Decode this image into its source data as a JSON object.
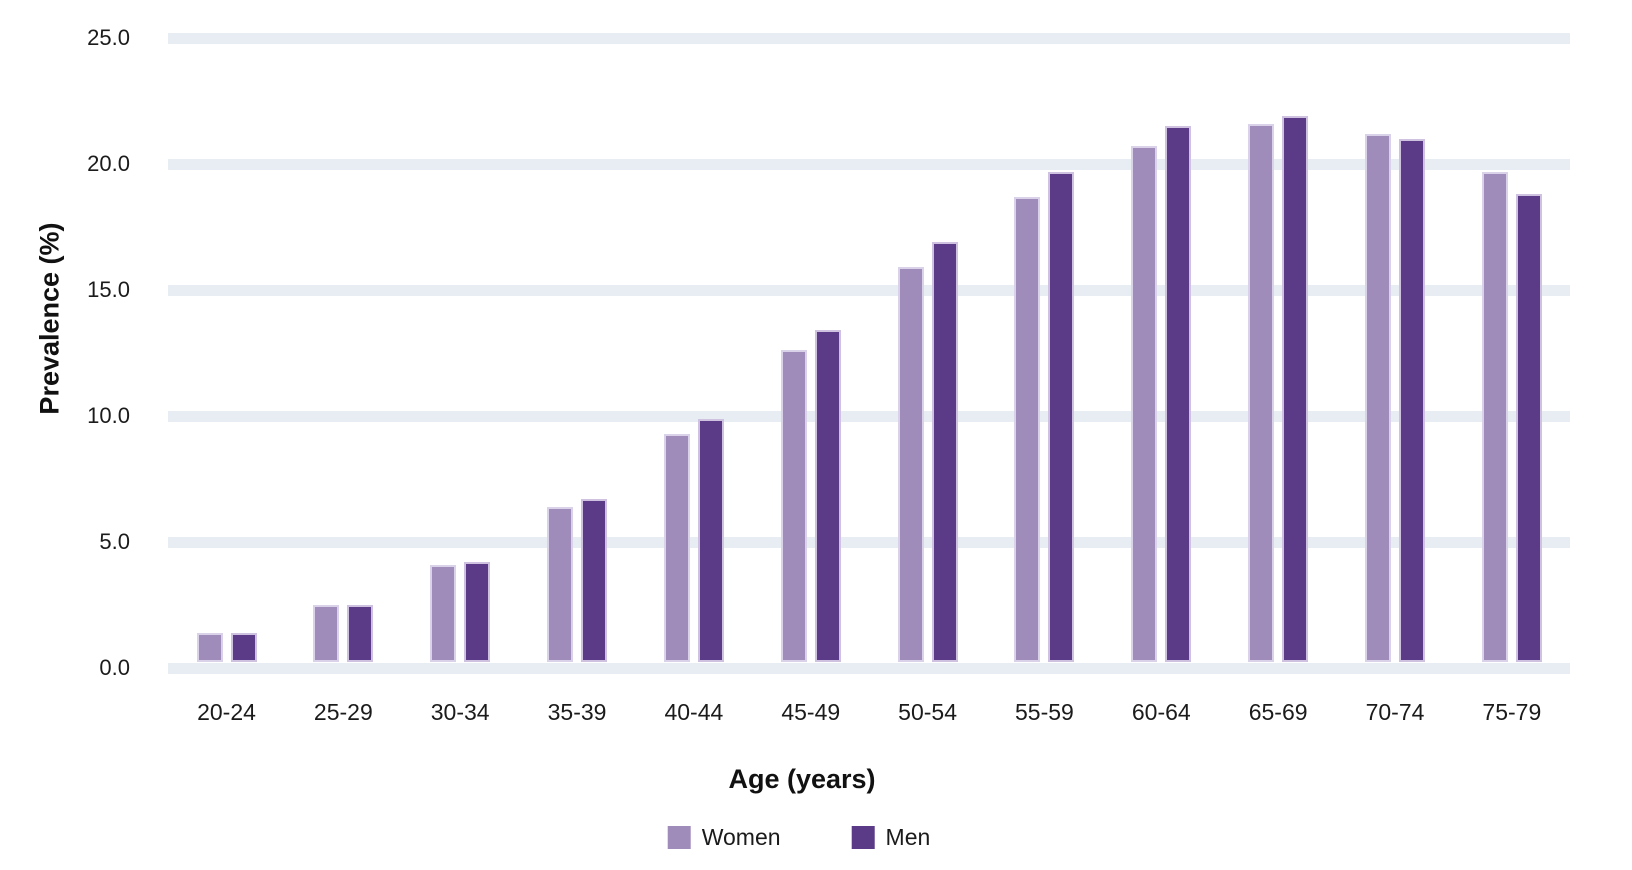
{
  "chart_data": {
    "type": "bar",
    "title": "",
    "categories": [
      "20-24",
      "25-29",
      "30-34",
      "35-39",
      "40-44",
      "45-49",
      "50-54",
      "55-59",
      "60-64",
      "65-69",
      "70-74",
      "75-79"
    ],
    "series": [
      {
        "name": "Women",
        "color": "#a08cba",
        "border_color": "#d9d2e8",
        "values": [
          1.4,
          2.5,
          4.1,
          6.4,
          9.3,
          12.6,
          15.9,
          18.7,
          20.7,
          21.6,
          21.2,
          19.7
        ]
      },
      {
        "name": "Men",
        "color": "#5b3a87",
        "border_color": "#cfc2e0",
        "values": [
          1.4,
          2.5,
          4.2,
          6.7,
          9.9,
          13.4,
          16.9,
          19.7,
          21.5,
          21.9,
          21.0,
          18.8
        ]
      }
    ],
    "xlabel": "Age (years)",
    "ylabel": "Prevalence (%)",
    "ylim": [
      0,
      25
    ],
    "ytick_step": 5,
    "ytick_labels": [
      "0.0",
      "5.0",
      "10.0",
      "15.0",
      "20.0",
      "25.0"
    ],
    "grid": "horizontal-bands",
    "legend_position": "bottom"
  },
  "colors": {
    "background": "#ffffff",
    "gridline": "#e8edf3",
    "text": "#1b1b1b",
    "axis_title_text": "#111111"
  }
}
